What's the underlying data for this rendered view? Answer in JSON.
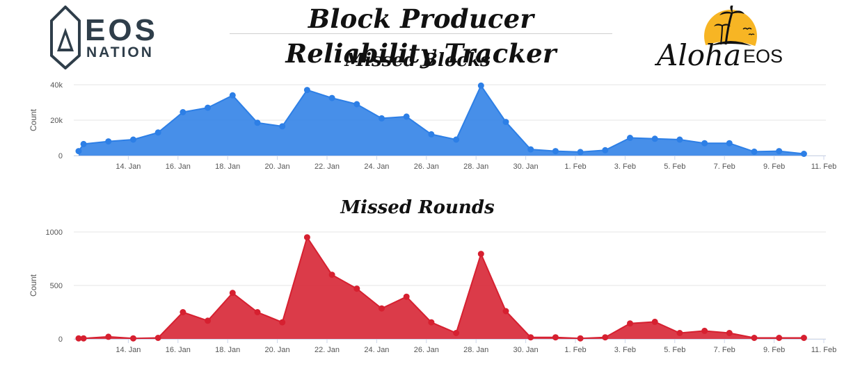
{
  "page": {
    "title": "Block Producer Reliability Tracker",
    "logos": {
      "left": {
        "line1": "EOS",
        "line2": "NATION"
      },
      "right": {
        "script": "Aloha",
        "text": "EOS"
      }
    }
  },
  "colors": {
    "blocks": "#2d7fe6",
    "rounds": "#d62030",
    "grid": "#e6e6e6",
    "text": "#555555"
  },
  "chart_data": [
    {
      "type": "area",
      "title": "Missed Blocks",
      "ylabel": "Count",
      "xlabel": "",
      "ylim": [
        0,
        40000
      ],
      "yticks": [
        0,
        20000,
        40000
      ],
      "ytick_labels": [
        "0",
        "20k",
        "40k"
      ],
      "xticks": [
        "14. Jan",
        "16. Jan",
        "18. Jan",
        "20. Jan",
        "22. Jan",
        "24. Jan",
        "26. Jan",
        "28. Jan",
        "30. Jan",
        "1. Feb",
        "3. Feb",
        "5. Feb",
        "7. Feb",
        "9. Feb",
        "11. Feb"
      ],
      "grid": true,
      "color": "#2d7fe6",
      "series": [
        {
          "dates": [
            "2018-01-12.8",
            "2018-01-13",
            "2018-01-14",
            "2018-01-15",
            "2018-01-16",
            "2018-01-17",
            "2018-01-18",
            "2018-01-19",
            "2018-01-20",
            "2018-01-21",
            "2018-01-22",
            "2018-01-23",
            "2018-01-24",
            "2018-01-25",
            "2018-01-26",
            "2018-01-27",
            "2018-01-28",
            "2018-01-29",
            "2018-01-30",
            "2018-01-31",
            "2018-02-01",
            "2018-02-02",
            "2018-02-03",
            "2018-02-04",
            "2018-02-05",
            "2018-02-06",
            "2018-02-07",
            "2018-02-08",
            "2018-02-09",
            "2018-02-10",
            "2018-02-11"
          ],
          "values": [
            2500,
            6500,
            8000,
            9000,
            13000,
            24500,
            27000,
            34000,
            18500,
            16500,
            37000,
            32500,
            29000,
            21000,
            22000,
            12000,
            9000,
            39500,
            19000,
            3500,
            2500,
            2000,
            3000,
            10000,
            9500,
            9000,
            7000,
            7000,
            2200,
            2500,
            1000
          ]
        }
      ]
    },
    {
      "type": "area",
      "title": "Missed Rounds",
      "ylabel": "Count",
      "xlabel": "",
      "ylim": [
        0,
        1000
      ],
      "yticks": [
        0,
        500,
        1000
      ],
      "ytick_labels": [
        "0",
        "500",
        "1000"
      ],
      "xticks": [
        "14. Jan",
        "16. Jan",
        "18. Jan",
        "20. Jan",
        "22. Jan",
        "24. Jan",
        "26. Jan",
        "28. Jan",
        "30. Jan",
        "1. Feb",
        "3. Feb",
        "5. Feb",
        "7. Feb",
        "9. Feb",
        "11. Feb"
      ],
      "grid": true,
      "color": "#d62030",
      "series": [
        {
          "dates": [
            "2018-01-12.8",
            "2018-01-13",
            "2018-01-14",
            "2018-01-15",
            "2018-01-16",
            "2018-01-17",
            "2018-01-18",
            "2018-01-19",
            "2018-01-20",
            "2018-01-21",
            "2018-01-22",
            "2018-01-23",
            "2018-01-24",
            "2018-01-25",
            "2018-01-26",
            "2018-01-27",
            "2018-01-28",
            "2018-01-29",
            "2018-01-30",
            "2018-01-31",
            "2018-02-01",
            "2018-02-02",
            "2018-02-03",
            "2018-02-04",
            "2018-02-05",
            "2018-02-06",
            "2018-02-07",
            "2018-02-08",
            "2018-02-09",
            "2018-02-10",
            "2018-02-11"
          ],
          "values": [
            5,
            5,
            20,
            5,
            10,
            250,
            170,
            430,
            250,
            155,
            950,
            600,
            470,
            285,
            395,
            155,
            55,
            795,
            260,
            15,
            15,
            5,
            15,
            145,
            160,
            55,
            75,
            55,
            10,
            10,
            10
          ]
        }
      ]
    }
  ]
}
